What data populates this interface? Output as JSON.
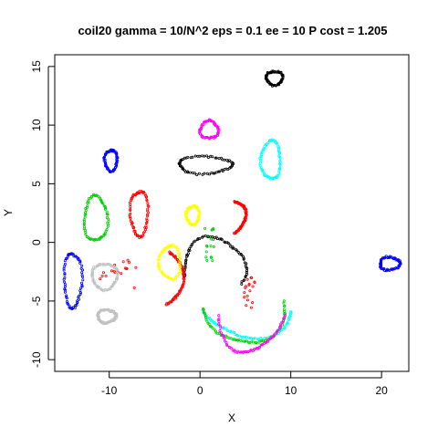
{
  "chart_data": {
    "type": "scatter",
    "title": "coil20 gamma = 10/N^2 eps = 0.1 ee = 10 P cost = 1.205",
    "xlabel": "X",
    "ylabel": "Y",
    "xlim": [
      -16,
      23
    ],
    "ylim": [
      -11,
      16
    ],
    "xticks": [
      -10,
      0,
      10,
      20
    ],
    "yticks": [
      -10,
      -5,
      0,
      5,
      10,
      15
    ],
    "grid": false,
    "legend": "none",
    "series": [
      {
        "color": "#000000",
        "shape": "loop",
        "center": [
          8.2,
          14.0
        ],
        "rx": 0.9,
        "ry": 0.6
      },
      {
        "color": "#000000",
        "shape": "loop",
        "center": [
          0.5,
          6.6
        ],
        "rx": 2.9,
        "ry": 0.75
      },
      {
        "color": "#000000",
        "shape": "arc",
        "center": [
          1.5,
          -2.2
        ],
        "rx": 3.4,
        "ry": 2.6,
        "from": -30,
        "to": 200
      },
      {
        "color": "#ff00ff",
        "shape": "loop",
        "center": [
          1.0,
          9.6
        ],
        "rx": 1.0,
        "ry": 0.75
      },
      {
        "color": "#00ffff",
        "shape": "loop",
        "center": [
          7.8,
          7.0
        ],
        "rx": 1.1,
        "ry": 1.6
      },
      {
        "color": "#00ffff",
        "shape": "arc",
        "center": [
          5.5,
          -5.3
        ],
        "rx": 5.0,
        "ry": 2.8,
        "from": 190,
        "to": 350
      },
      {
        "color": "#0000ff",
        "shape": "loop",
        "center": [
          -9.8,
          7.0
        ],
        "rx": 0.7,
        "ry": 0.9
      },
      {
        "color": "#0000ff",
        "shape": "loop",
        "center": [
          -14.0,
          -3.2
        ],
        "rx": 1.0,
        "ry": 2.3
      },
      {
        "color": "#0000ff",
        "shape": "loop",
        "center": [
          20.9,
          -1.8
        ],
        "rx": 1.1,
        "ry": 0.55
      },
      {
        "color": "#00cc00",
        "shape": "loop",
        "center": [
          -11.5,
          2.0
        ],
        "rx": 1.3,
        "ry": 1.9
      },
      {
        "color": "#00cc00",
        "shape": "arc",
        "center": [
          5.0,
          -4.9
        ],
        "rx": 4.4,
        "ry": 3.8,
        "from": 190,
        "to": 360
      },
      {
        "color": "#00cc00",
        "shape": "scatter",
        "center": [
          1.0,
          -0.2
        ],
        "rx": 0.7,
        "ry": 1.4
      },
      {
        "color": "#ff0000",
        "shape": "loop",
        "center": [
          -6.7,
          2.5
        ],
        "rx": 1.0,
        "ry": 1.9
      },
      {
        "color": "#ff0000",
        "shape": "arc",
        "center": [
          3.5,
          2.2
        ],
        "rx": 1.5,
        "ry": 1.4,
        "from": -80,
        "to": 80
      },
      {
        "color": "#ff0000",
        "shape": "arc",
        "center": [
          -3.5,
          -3.0
        ],
        "rx": 1.6,
        "ry": 2.2,
        "from": -100,
        "to": 90
      },
      {
        "color": "#ff0000",
        "shape": "scatter",
        "center": [
          5.6,
          -4.3
        ],
        "rx": 0.8,
        "ry": 1.3
      },
      {
        "color": "#ff0000",
        "shape": "scatter",
        "center": [
          -9.0,
          -3.0
        ],
        "rx": 2.0,
        "ry": 1.5
      },
      {
        "color": "#ffff00",
        "shape": "loop",
        "center": [
          -3.3,
          -1.7
        ],
        "rx": 1.2,
        "ry": 1.4
      },
      {
        "color": "#ffff00",
        "shape": "loop",
        "center": [
          -0.8,
          2.3
        ],
        "rx": 0.7,
        "ry": 0.8
      },
      {
        "color": "#c0c0c0",
        "shape": "loop",
        "center": [
          -10.5,
          -2.9
        ],
        "rx": 1.4,
        "ry": 1.1
      },
      {
        "color": "#c0c0c0",
        "shape": "loop",
        "center": [
          -10.3,
          -6.3
        ],
        "rx": 1.0,
        "ry": 0.55
      },
      {
        "color": "#ff00ff",
        "shape": "arc",
        "center": [
          5.5,
          -4.6
        ],
        "rx": 3.7,
        "ry": 4.9,
        "from": 200,
        "to": 345
      }
    ]
  }
}
